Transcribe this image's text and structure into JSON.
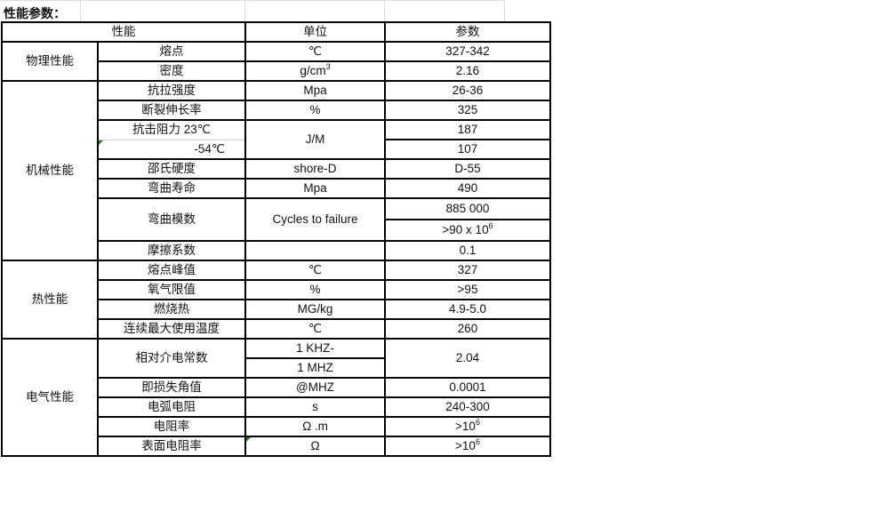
{
  "title": "性能参数：",
  "header": {
    "property": "性能",
    "unit": "单位",
    "value": "参数"
  },
  "groups": {
    "physical": "物理性能",
    "mechanical": "机械性能",
    "thermal": "热性能",
    "electrical": "电气性能"
  },
  "rows": {
    "melting": {
      "name": "熔点",
      "unit": "℃",
      "value": "327-342"
    },
    "density": {
      "name": "密度",
      "unit_base": "g/cm",
      "unit_sup": "3",
      "value": "2.16"
    },
    "tensile": {
      "name": "抗拉强度",
      "unit": "Mpa",
      "value": "26-36"
    },
    "elongation": {
      "name": "断裂伸长率",
      "unit": "%",
      "value": "325"
    },
    "impact": {
      "name": "抗击阻力  23℃",
      "name2": "-54℃",
      "unit": "J/M",
      "value": "187",
      "value2": "107"
    },
    "hardness": {
      "name": "邵氏硬度",
      "unit": "shore-D",
      "value": "D-55"
    },
    "flexlife": {
      "name": "弯曲寿命",
      "unit": "Mpa",
      "value": "490"
    },
    "flexmod": {
      "name": "弯曲模数",
      "unit": "Cycles to failure",
      "value": "885 000",
      "value2_base": ">90 x 10",
      "value2_sup": "6"
    },
    "friction": {
      "name": "摩擦系数",
      "unit": "",
      "value": "0.1"
    },
    "meltpeak": {
      "name": "熔点峰值",
      "unit": "℃",
      "value": "327"
    },
    "oxygen": {
      "name": "氧气限值",
      "unit": "%",
      "value": ">95"
    },
    "combustion": {
      "name": "燃烧热",
      "unit": "MG/kg",
      "value": "4.9-5.0"
    },
    "maxtemp": {
      "name": "连续最大使用温度",
      "unit": "℃",
      "value": "260"
    },
    "dielectric": {
      "name": "相对介电常数",
      "unit": "1 KHZ-",
      "unit2": "1 MHZ",
      "value": "2.04"
    },
    "loss": {
      "name": "即损失角值",
      "unit": "@MHZ",
      "value": "0.0001"
    },
    "arc": {
      "name": "电弧电阻",
      "unit": "s",
      "value": "240-300"
    },
    "resistivity": {
      "name": "电阻率",
      "unit": "Ω .m",
      "value_base": ">10",
      "value_sup": "6"
    },
    "surface": {
      "name": "表面电阻率",
      "unit": "Ω",
      "value_base": ">10",
      "value_sup": "6"
    }
  },
  "colors": {
    "border": "#000000",
    "comment_marker": "#1e7b1e"
  }
}
